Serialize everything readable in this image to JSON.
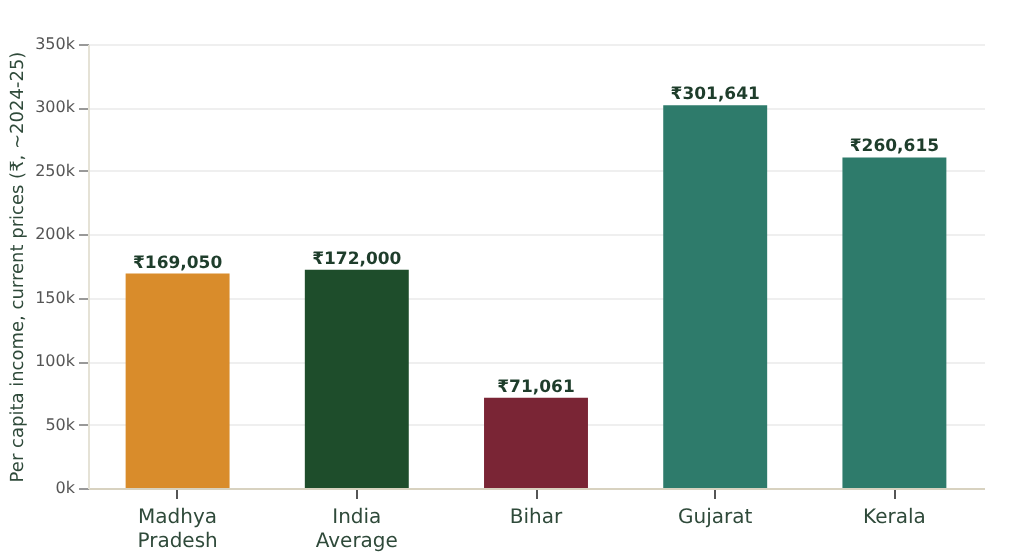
{
  "chart_data": {
    "type": "bar",
    "ylabel": "Per capita income, current prices (₹, ~2024-25)",
    "categories": [
      "Madhya Pradesh",
      "India Average",
      "Bihar",
      "Gujarat",
      "Kerala"
    ],
    "values": [
      169050,
      172000,
      71061,
      301641,
      260615
    ],
    "colors": [
      "#d98c2b",
      "#1e4d2b",
      "#7a2535",
      "#2e7b6b",
      "#2e7b6b"
    ],
    "value_labels": [
      "₹169,050",
      "₹172,000",
      "₹71,061",
      "₹301,641",
      "₹260,615"
    ],
    "ylim": [
      0,
      350000
    ],
    "yticks": [
      {
        "value": 0,
        "label": "0k"
      },
      {
        "value": 50000,
        "label": "50k"
      },
      {
        "value": 100000,
        "label": "100k"
      },
      {
        "value": 150000,
        "label": "150k"
      },
      {
        "value": 200000,
        "label": "200k"
      },
      {
        "value": 250000,
        "label": "250k"
      },
      {
        "value": 300000,
        "label": "300k"
      },
      {
        "value": 350000,
        "label": "350k"
      }
    ],
    "grid": "y"
  }
}
